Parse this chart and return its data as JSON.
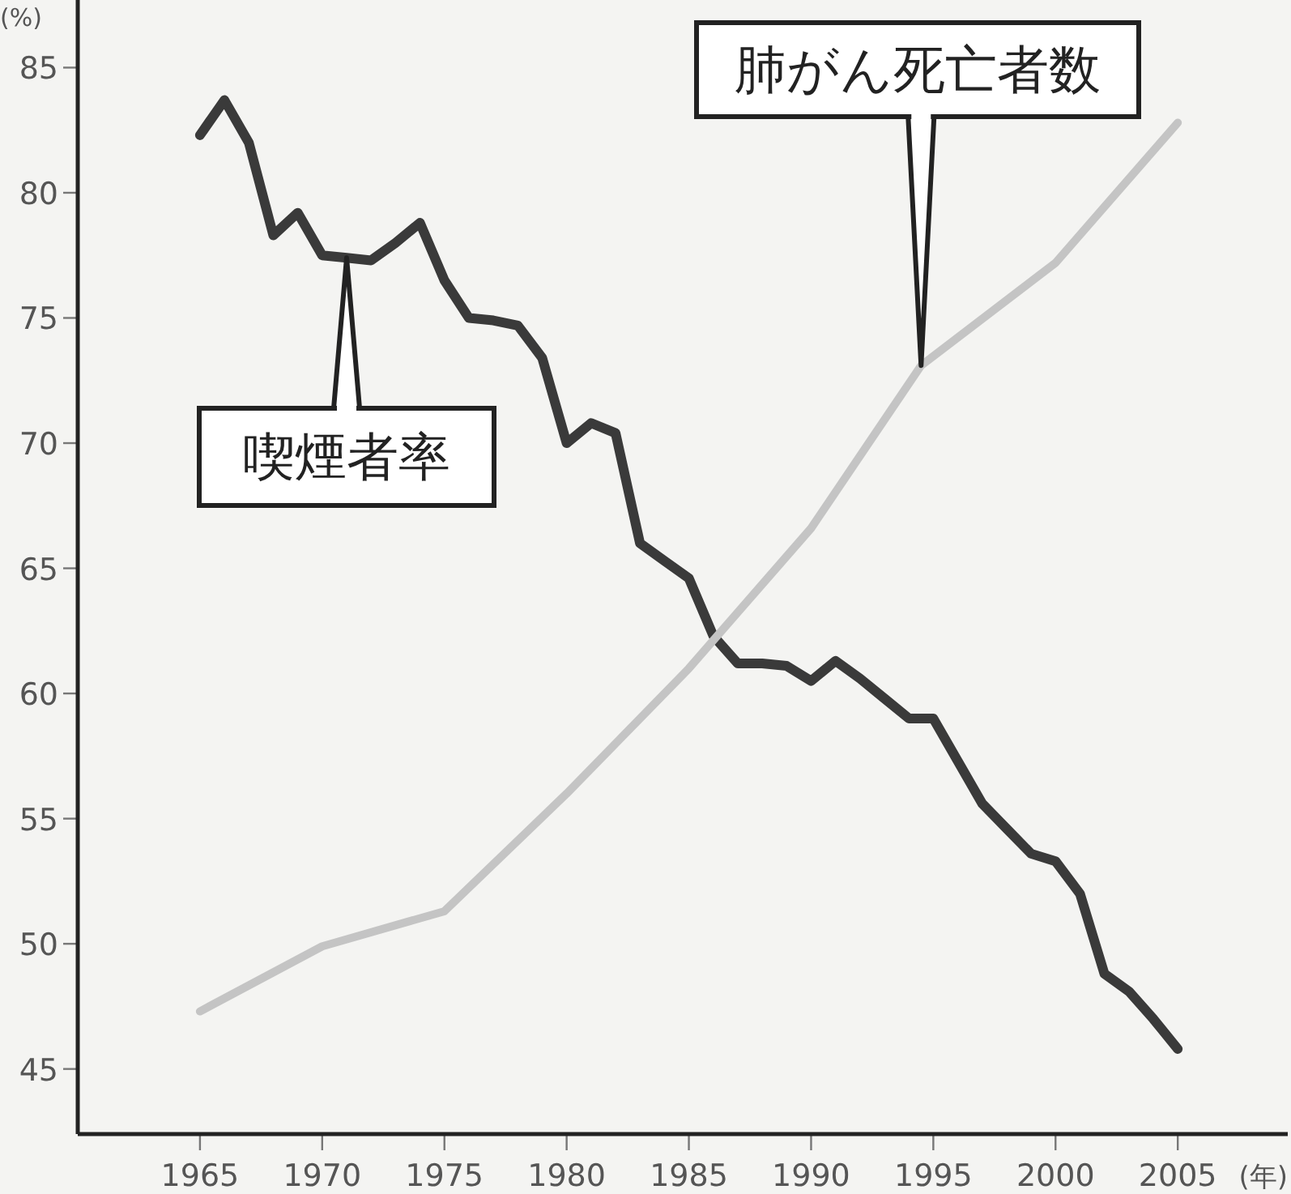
{
  "chart_data": {
    "type": "line",
    "xlabel": "(年)",
    "ylabel": "(%)",
    "xlim": [
      1960,
      2009.5
    ],
    "ylim": [
      42.4,
      87.7
    ],
    "xticks": [
      1965,
      1970,
      1975,
      1980,
      1985,
      1990,
      1995,
      2000,
      2005
    ],
    "yticks": [
      45,
      50,
      55,
      60,
      65,
      70,
      75,
      80,
      85
    ],
    "grid": false,
    "marker": "none",
    "line_style": "solid",
    "series": [
      {
        "color": "#3a3a3a",
        "x": [
          1965,
          1966,
          1967,
          1968,
          1969,
          1970,
          1971,
          1972,
          1973,
          1974,
          1975,
          1976,
          1977,
          1978,
          1979,
          1980,
          1981,
          1982,
          1983,
          1984,
          1985,
          1986,
          1987,
          1988,
          1989,
          1990,
          1991,
          1992,
          1993,
          1994,
          1995,
          1996,
          1997,
          1998,
          1999,
          2000,
          2001,
          2002,
          2003,
          2004,
          2005
        ],
        "values": [
          82.3,
          83.7,
          82.0,
          78.3,
          79.2,
          77.5,
          77.4,
          77.3,
          78.0,
          78.8,
          76.5,
          75.0,
          74.9,
          74.7,
          73.4,
          70.0,
          70.8,
          70.4,
          66.0,
          65.3,
          64.6,
          62.3,
          61.2,
          61.2,
          61.1,
          60.5,
          61.3,
          60.6,
          59.8,
          59.0,
          59.0,
          57.3,
          55.6,
          54.6,
          53.6,
          53.3,
          52.0,
          48.8,
          48.1,
          47.0,
          45.8
        ]
      },
      {
        "color": "#c4c4c4",
        "x": [
          1965,
          1970,
          1975,
          1980,
          1985,
          1990,
          1994.5,
          2000,
          2005
        ],
        "values": [
          47.3,
          49.9,
          51.3,
          56.0,
          61.0,
          66.6,
          73.1,
          77.2,
          82.8
        ]
      }
    ],
    "annotations": [
      {
        "text": "喫煙者率",
        "x": 1971,
        "y": 77.4
      },
      {
        "text": "肺がん死亡者数",
        "x": 1994.5,
        "y": 73.1
      }
    ]
  }
}
